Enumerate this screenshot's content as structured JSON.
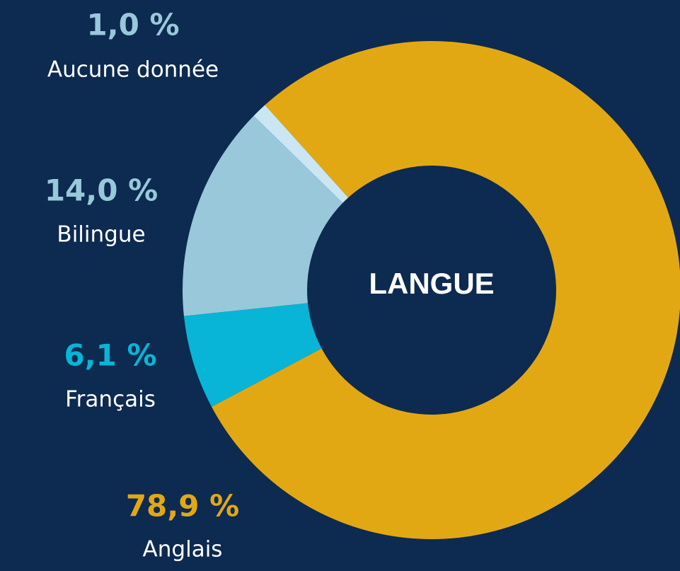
{
  "chart_data": {
    "type": "pie",
    "title": "LANGUE",
    "categories": [
      "Aucune donnée",
      "Bilingue",
      "Français",
      "Anglais"
    ],
    "values": [
      1.0,
      14.0,
      6.1,
      78.9
    ],
    "value_labels": [
      "1,0 %",
      "14,0 %",
      "6,1 %",
      "78,9 %"
    ],
    "colors": [
      "#c9e6f2",
      "#98c8da",
      "#08b5d6",
      "#e2a814"
    ],
    "donut": true
  }
}
